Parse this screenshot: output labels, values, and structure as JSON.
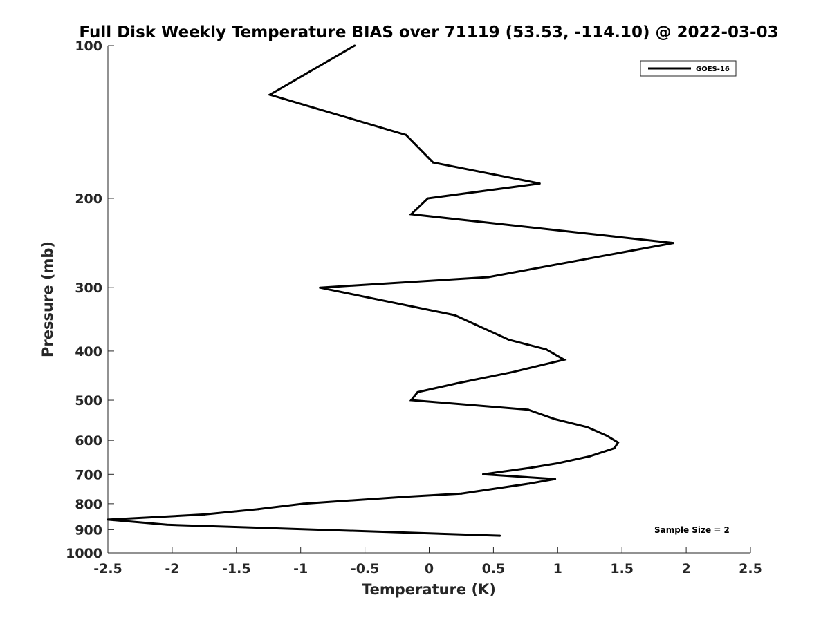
{
  "chart_data": {
    "type": "line",
    "title": "Full Disk Weekly Temperature BIAS over 71119 (53.53, -114.10) @ 2022-03-03",
    "xlabel": "Temperature (K)",
    "ylabel": "Pressure (mb)",
    "xlim": [
      -2.5,
      2.5
    ],
    "ylim": [
      100,
      1000
    ],
    "yscale": "log",
    "y_reversed": true,
    "grid": false,
    "legend_position": "top-right",
    "x_ticks": [
      -2.5,
      -2,
      -1.5,
      -1,
      -0.5,
      0,
      0.5,
      1,
      1.5,
      2,
      2.5
    ],
    "x_tick_labels": [
      "-2.5",
      "-2",
      "-1.5",
      "-1",
      "-0.5",
      "0",
      "0.5",
      "1",
      "1.5",
      "2",
      "2.5"
    ],
    "y_ticks": [
      100,
      200,
      300,
      400,
      500,
      600,
      700,
      800,
      900,
      1000
    ],
    "y_tick_labels": [
      "100",
      "200",
      "300",
      "400",
      "500",
      "600",
      "700",
      "800",
      "900",
      "1000"
    ],
    "annotation": "Sample Size = 2",
    "series": [
      {
        "name": "GOES-16",
        "color": "#000000",
        "points": [
          {
            "x": -0.58,
            "p": 100
          },
          {
            "x": -1.24,
            "p": 125
          },
          {
            "x": -0.18,
            "p": 150
          },
          {
            "x": 0.03,
            "p": 170
          },
          {
            "x": 0.86,
            "p": 187
          },
          {
            "x": -0.01,
            "p": 200
          },
          {
            "x": -0.14,
            "p": 215
          },
          {
            "x": 1.9,
            "p": 245
          },
          {
            "x": 1.24,
            "p": 263
          },
          {
            "x": 0.46,
            "p": 286
          },
          {
            "x": -0.85,
            "p": 300
          },
          {
            "x": 0.2,
            "p": 340
          },
          {
            "x": 0.62,
            "p": 380
          },
          {
            "x": 0.91,
            "p": 397
          },
          {
            "x": 1.05,
            "p": 416
          },
          {
            "x": 0.65,
            "p": 440
          },
          {
            "x": 0.22,
            "p": 463
          },
          {
            "x": -0.09,
            "p": 482
          },
          {
            "x": -0.14,
            "p": 500
          },
          {
            "x": 0.77,
            "p": 522
          },
          {
            "x": 0.98,
            "p": 545
          },
          {
            "x": 1.23,
            "p": 565
          },
          {
            "x": 1.38,
            "p": 587
          },
          {
            "x": 1.47,
            "p": 606
          },
          {
            "x": 1.44,
            "p": 622
          },
          {
            "x": 1.25,
            "p": 645
          },
          {
            "x": 1.0,
            "p": 666
          },
          {
            "x": 0.78,
            "p": 680
          },
          {
            "x": 0.42,
            "p": 700
          },
          {
            "x": 0.98,
            "p": 715
          },
          {
            "x": 0.78,
            "p": 730
          },
          {
            "x": 0.25,
            "p": 764
          },
          {
            "x": -0.18,
            "p": 775
          },
          {
            "x": -0.98,
            "p": 800
          },
          {
            "x": -1.33,
            "p": 820
          },
          {
            "x": -1.75,
            "p": 840
          },
          {
            "x": -2.5,
            "p": 860
          },
          {
            "x": -2.04,
            "p": 880
          },
          {
            "x": 0.55,
            "p": 925
          }
        ]
      }
    ]
  }
}
